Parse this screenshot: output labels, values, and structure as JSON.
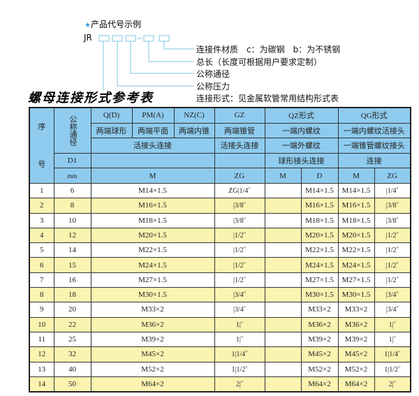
{
  "code_example": {
    "title": "产品代号示例",
    "prefix": "JR",
    "star_color": "#2aa0d8",
    "labels": [
      "连接件材质　c：为碳钢　b：为不锈钢",
      "总长（长度可根据用户要求定制）",
      "公称通径",
      "公称压力",
      "连接形式：见金属软管常用结构形式表"
    ]
  },
  "table_title": "螺母连接形式参考表",
  "colors": {
    "header_bg": "#8ecbee",
    "alt_row_bg": "#fbf3b0"
  },
  "header": {
    "seq_a": "序",
    "seq_b": "号",
    "dn": "公称通径",
    "row1": [
      "Q(D)",
      "PM(A)",
      "NZ(C)",
      "GZ",
      "QZ形式",
      "QG形式"
    ],
    "row2": [
      "两端球形",
      "两端平面",
      "两端内锥",
      "两端锥管",
      "一端内螺纹",
      "一端内螺纹活接头"
    ],
    "row3": [
      "活接头连接",
      "活接头连接",
      "一端外螺纹",
      "一端锥管螺纹接头"
    ],
    "row4": [
      "D1",
      "球形接头连接",
      "连接"
    ],
    "row5": [
      "mm",
      "M",
      "ZG",
      "M",
      "D",
      "M",
      "ZG"
    ]
  },
  "rows": [
    {
      "no": "1",
      "dn": "6",
      "m": "M14×1.5",
      "zg": "ZG|1/4",
      "qz_d": "M14×1.5",
      "qg_m": "M14×1.5",
      "qg_zg": "|1/4"
    },
    {
      "no": "2",
      "dn": "8",
      "m": "M16×1.5",
      "zg": "|3/8",
      "qz_d": "M16×1.5",
      "qg_m": "M16×1.5",
      "qg_zg": "|3/8"
    },
    {
      "no": "3",
      "dn": "10",
      "m": "M18×1.5",
      "zg": "|3/8",
      "qz_d": "M18×1.5",
      "qg_m": "M18×1.5",
      "qg_zg": "|3/8"
    },
    {
      "no": "4",
      "dn": "12",
      "m": "M20×1.5",
      "zg": "|1/2",
      "qz_d": "M20×1.5",
      "qg_m": "M20×1.5",
      "qg_zg": "|1/2"
    },
    {
      "no": "5",
      "dn": "14",
      "m": "M22×1.5",
      "zg": "|1/2",
      "qz_d": "M22×1.5",
      "qg_m": "M22×1.5",
      "qg_zg": "|1/2"
    },
    {
      "no": "6",
      "dn": "15",
      "m": "M24×1.5",
      "zg": "|1/2",
      "qz_d": "M24×1.5",
      "qg_m": "M24×1.5",
      "qg_zg": "|1/2"
    },
    {
      "no": "7",
      "dn": "16",
      "m": "M27×1.5",
      "zg": "|1/2",
      "qz_d": "M27×1.5",
      "qg_m": "M27×1.5",
      "qg_zg": "|1/2"
    },
    {
      "no": "8",
      "dn": "18",
      "m": "M30×1.5",
      "zg": "|3/4",
      "qz_d": "M30×1.5",
      "qg_m": "M30×1.5",
      "qg_zg": "|3/4"
    },
    {
      "no": "9",
      "dn": "20",
      "m": "M33×2",
      "zg": "|3/4",
      "qz_d": "M33×2",
      "qg_m": "M33×2",
      "qg_zg": "|3/4"
    },
    {
      "no": "10",
      "dn": "22",
      "m": "M36×2",
      "zg": "1|",
      "qz_d": "M36×2",
      "qg_m": "M36×2",
      "qg_zg": "1|"
    },
    {
      "no": "11",
      "dn": "25",
      "m": "M39×2",
      "zg": "1|",
      "qz_d": "M39×2",
      "qg_m": "M39×2",
      "qg_zg": "1|"
    },
    {
      "no": "12",
      "dn": "32",
      "m": "M45×2",
      "zg": "1|1/4",
      "qz_d": "M45×2",
      "qg_m": "M45×2",
      "qg_zg": "1|1/4"
    },
    {
      "no": "13",
      "dn": "40",
      "m": "M52×2",
      "zg": "1|1/2",
      "qz_d": "M52×2",
      "qg_m": "M52×2",
      "qg_zg": "1|1/2"
    },
    {
      "no": "14",
      "dn": "50",
      "m": "M64×2",
      "zg": "2|",
      "qz_d": "M64×2",
      "qg_m": "M64×2",
      "qg_zg": "2|"
    }
  ]
}
